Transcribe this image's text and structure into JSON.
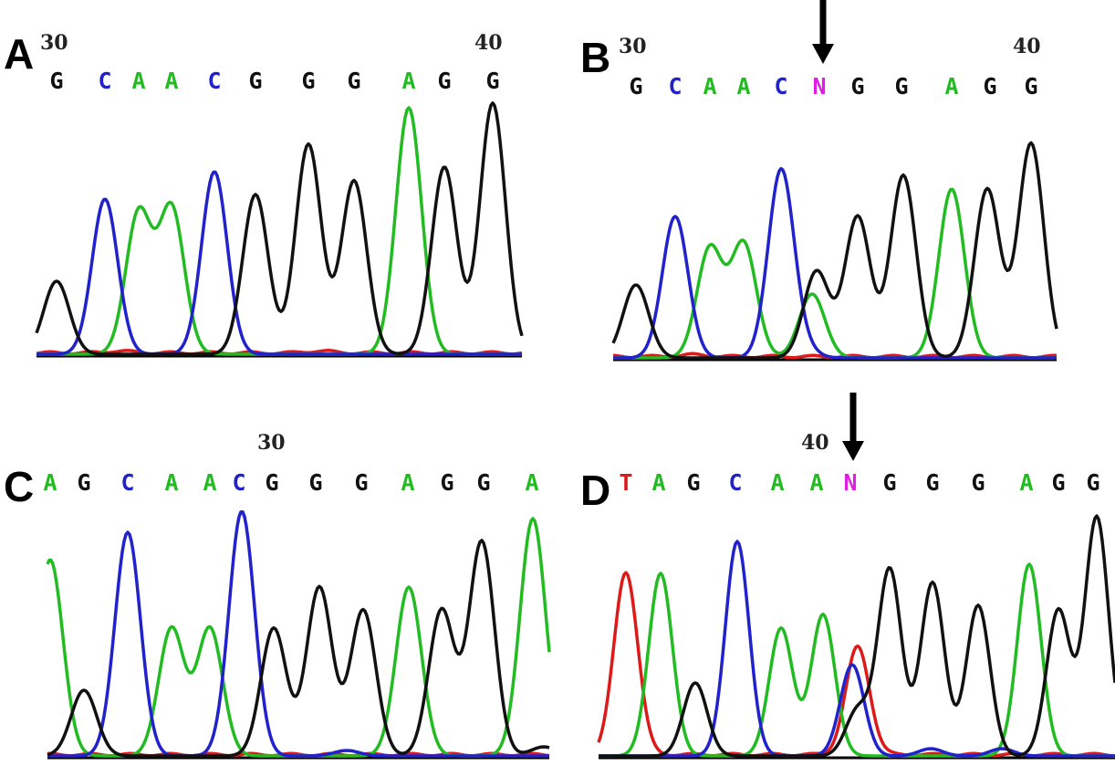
{
  "colors": {
    "A": "#22bb22",
    "C": "#2222cc",
    "G": "#111111",
    "T": "#dd1a1a",
    "N": "#e020e0"
  },
  "panels": [
    {
      "id": "A",
      "label": "A",
      "pos_labels": [
        "30",
        "40"
      ],
      "bases": [
        "G",
        "C",
        "A",
        "A",
        "C",
        "G",
        "G",
        "G",
        "A",
        "G",
        "G"
      ],
      "arrow": false
    },
    {
      "id": "B",
      "label": "B",
      "pos_labels": [
        "30",
        "40"
      ],
      "bases": [
        "G",
        "C",
        "A",
        "A",
        "C",
        "N",
        "G",
        "G",
        "A",
        "G",
        "G"
      ],
      "arrow": true
    },
    {
      "id": "C",
      "label": "C",
      "pos_labels": [
        "30"
      ],
      "bases": [
        "A",
        "G",
        "C",
        "A",
        "A",
        "C",
        "G",
        "G",
        "G",
        "A",
        "G",
        "G",
        "A"
      ],
      "arrow": false
    },
    {
      "id": "D",
      "label": "D",
      "pos_labels": [
        "40"
      ],
      "bases": [
        "T",
        "A",
        "G",
        "C",
        "A",
        "A",
        "N",
        "G",
        "G",
        "G",
        "A",
        "G",
        "G"
      ],
      "arrow": true
    }
  ]
}
